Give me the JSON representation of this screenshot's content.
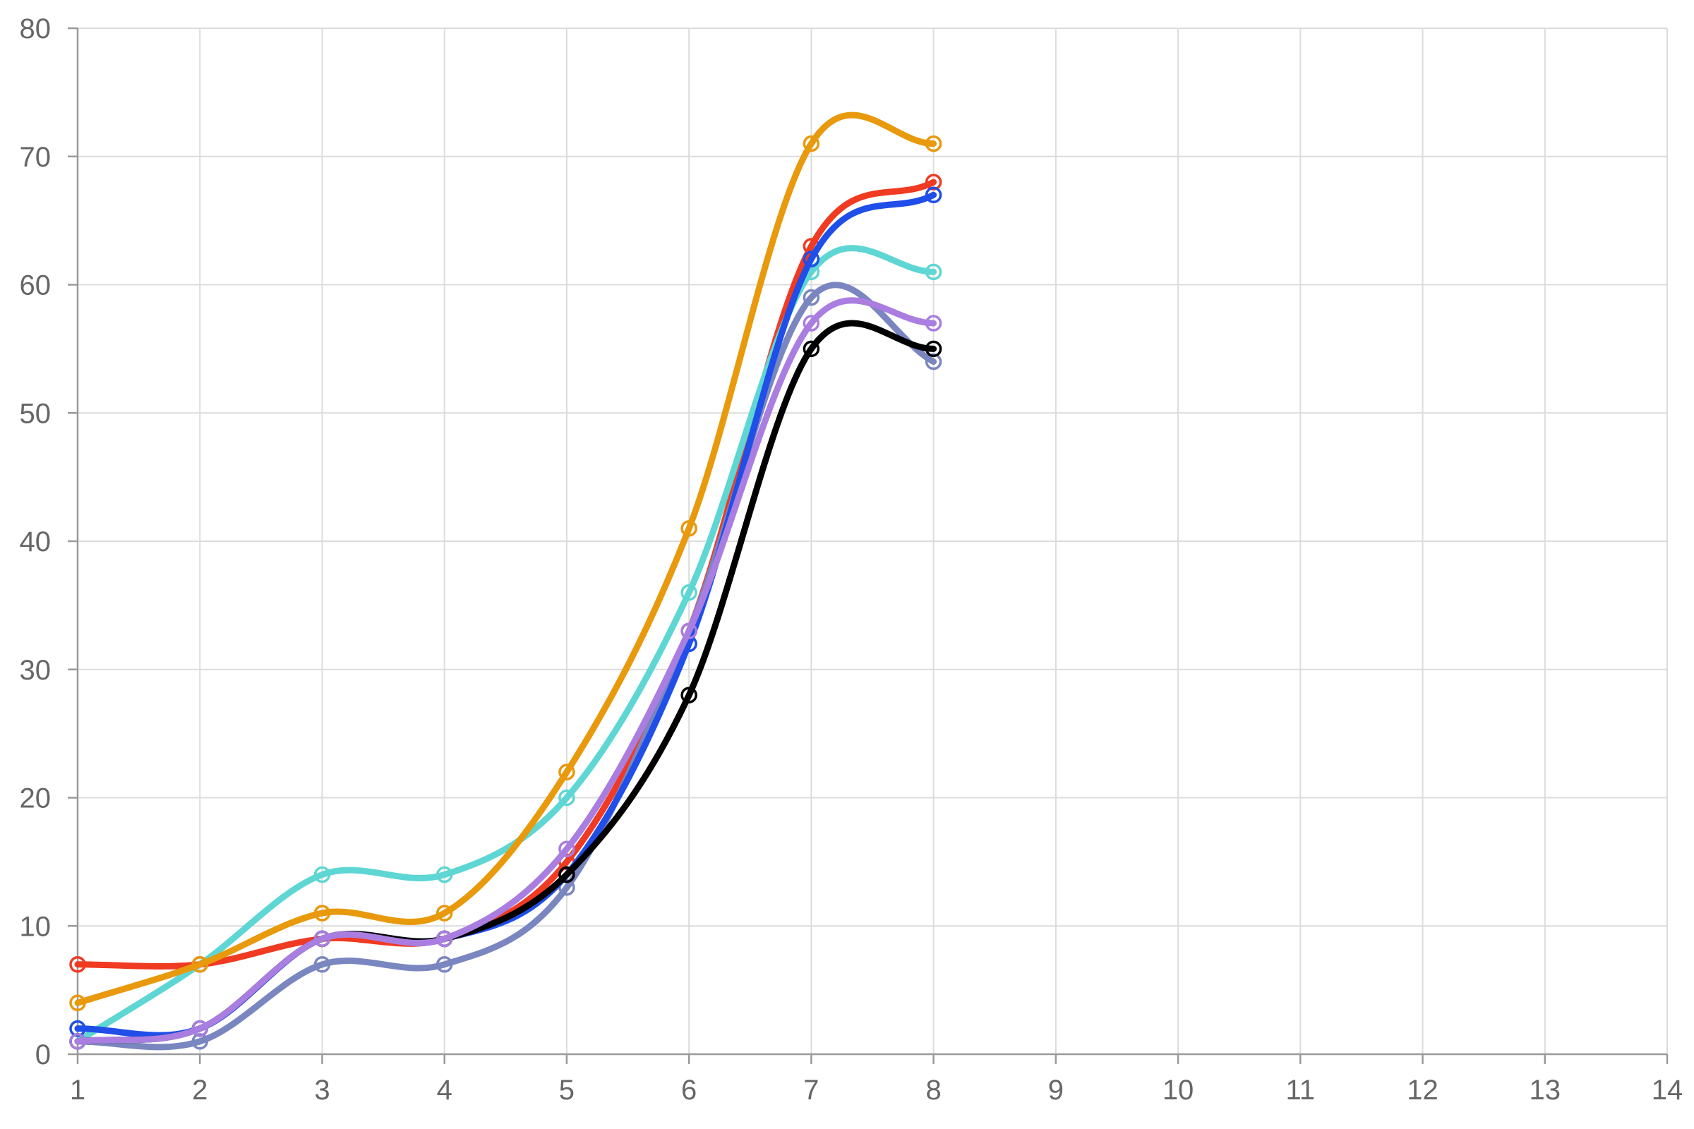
{
  "chart_data": {
    "type": "line",
    "title": "",
    "xlabel": "",
    "ylabel": "",
    "xlim": [
      1,
      14
    ],
    "ylim": [
      0,
      80
    ],
    "grid": true,
    "legend": "none",
    "curve": "smooth",
    "x_ticks": [
      "1",
      "2",
      "3",
      "4",
      "5",
      "6",
      "7",
      "8",
      "9",
      "10",
      "11",
      "12",
      "13",
      "14"
    ],
    "y_ticks": [
      "0",
      "10",
      "20",
      "30",
      "40",
      "50",
      "60",
      "70",
      "80"
    ],
    "x": [
      1,
      2,
      3,
      4,
      5,
      6,
      7,
      8
    ],
    "series": [
      {
        "color": "#f03a22",
        "values": [
          7,
          7,
          9,
          9,
          15,
          33,
          63,
          68
        ]
      },
      {
        "color": "#5ed6d4",
        "values": [
          1,
          7,
          14,
          14,
          20,
          36,
          61,
          61
        ]
      },
      {
        "color": "#e8990c",
        "values": [
          4,
          7,
          11,
          11,
          22,
          41,
          71,
          71
        ]
      },
      {
        "color": "#7a86c0",
        "values": [
          1,
          1,
          7,
          7,
          13,
          33,
          59,
          54
        ]
      },
      {
        "color": "#1f4ee8",
        "values": [
          2,
          2,
          9,
          9,
          14,
          32,
          62,
          67
        ]
      },
      {
        "color": "#000000",
        "values": [
          1,
          2,
          9,
          9,
          14,
          28,
          55,
          55
        ]
      },
      {
        "color": "#a97ee0",
        "values": [
          1,
          2,
          9,
          9,
          16,
          33,
          57,
          57
        ]
      }
    ]
  }
}
